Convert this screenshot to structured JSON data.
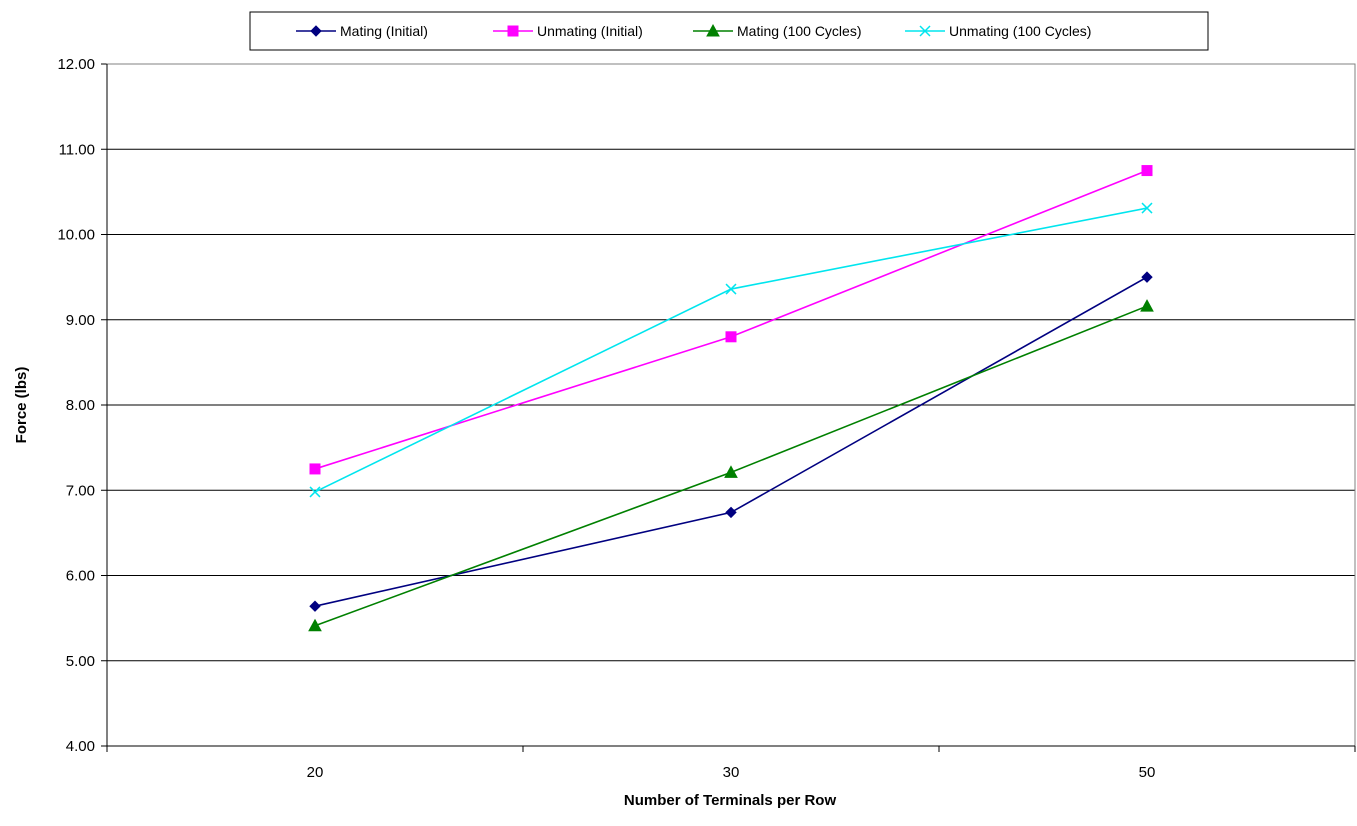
{
  "chart_data": {
    "type": "line",
    "title": "",
    "xlabel": "Number of Terminals per Row",
    "ylabel": "Force (lbs)",
    "categories": [
      "20",
      "30",
      "50"
    ],
    "ylim": [
      4,
      12
    ],
    "ytick_step": 1,
    "ytick_labels": [
      "4.00",
      "5.00",
      "6.00",
      "7.00",
      "8.00",
      "9.00",
      "10.00",
      "11.00",
      "12.00"
    ],
    "grid": "horizontal",
    "legend_position": "top-center",
    "series": [
      {
        "name": "Mating (Initial)",
        "values": [
          5.64,
          6.74,
          9.5
        ],
        "color": "#000080",
        "marker": "diamond"
      },
      {
        "name": "Unmating (Initial)",
        "values": [
          7.25,
          8.8,
          10.75
        ],
        "color": "#ff00ff",
        "marker": "square"
      },
      {
        "name": "Mating (100 Cycles)",
        "values": [
          5.41,
          7.21,
          9.16
        ],
        "color": "#008000",
        "marker": "triangle"
      },
      {
        "name": "Unmating (100 Cycles)",
        "values": [
          6.98,
          9.36,
          10.31
        ],
        "color": "#00e5ee",
        "marker": "x"
      }
    ]
  }
}
